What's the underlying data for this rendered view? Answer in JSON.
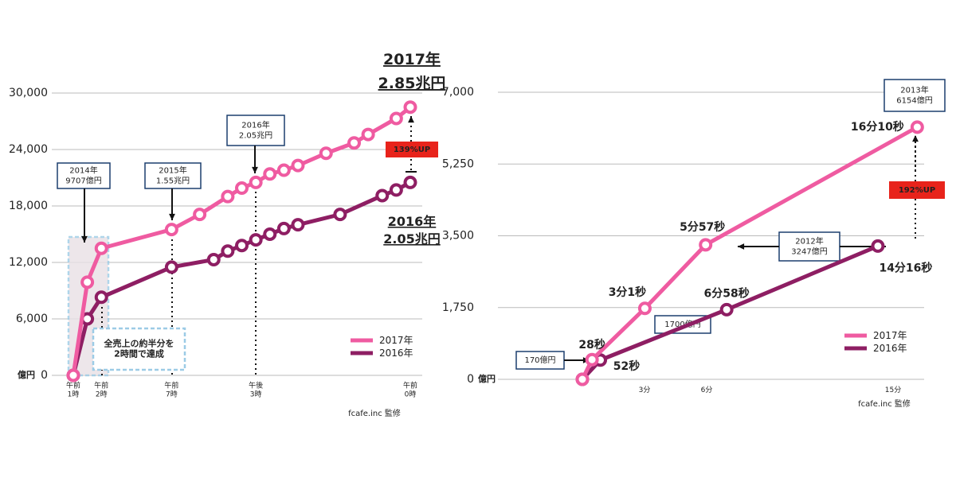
{
  "chart_data": [
    {
      "type": "line",
      "y_unit": "億円",
      "source": "fcafe.inc 監修",
      "xlim": [
        0,
        24
      ],
      "ylim": [
        0,
        30000
      ],
      "xticks": [
        {
          "value": 0,
          "label": "午前\n1時"
        },
        {
          "value": 2,
          "label": "午前\n2時"
        },
        {
          "value": 7,
          "label": "午前\n7時"
        },
        {
          "value": 13,
          "label": "午後\n3時"
        },
        {
          "value": 24,
          "label": "午前\n0時"
        }
      ],
      "yticks": [
        0,
        {
          "value": 6000,
          "label": "6,000"
        },
        {
          "value": 12000,
          "label": "12,000"
        },
        {
          "value": 18000,
          "label": "18,000"
        },
        {
          "value": 24000,
          "label": "24,000"
        },
        {
          "value": 30000,
          "label": "30,000"
        }
      ],
      "grid": true,
      "legend": "lower right",
      "series": [
        {
          "name": "2017年",
          "color": "#ef5ba1",
          "x": [
            0,
            1,
            2,
            7,
            9,
            11,
            12,
            13,
            14,
            15,
            16,
            18,
            20,
            21,
            23,
            24
          ],
          "values": [
            0,
            9900,
            13500,
            15500,
            17100,
            19000,
            19900,
            20500,
            21400,
            21800,
            22300,
            23600,
            24700,
            25600,
            27300,
            28500
          ]
        },
        {
          "name": "2016年",
          "color": "#8e1e63",
          "x": [
            0,
            1,
            2,
            7,
            10,
            11,
            12,
            13,
            14,
            15,
            16,
            19,
            22,
            23,
            24
          ],
          "values": [
            0,
            6000,
            8300,
            11500,
            12300,
            13200,
            13800,
            14400,
            15000,
            15600,
            16000,
            17100,
            19100,
            19700,
            20500
          ]
        }
      ],
      "annotations": [
        "2014年\n9707億円",
        "2015年\n1.55兆円",
        "2016年\n2.05兆円",
        "全売上の約半分を\n2時間で達成",
        "139%UP",
        "2017年\n2.85兆円",
        "2016年\n2.05兆円"
      ]
    },
    {
      "type": "line",
      "y_unit": "億円",
      "source": "fcafe.inc 監修",
      "xlim": [
        0,
        16.5
      ],
      "ylim": [
        0,
        7000
      ],
      "xticks": [
        {
          "value": 3,
          "label": "3分"
        },
        {
          "value": 6,
          "label": "6分"
        },
        {
          "value": 15,
          "label": "15分"
        }
      ],
      "yticks": [
        0,
        {
          "value": 1750,
          "label": "1,750"
        },
        {
          "value": 3500,
          "label": "3,500"
        },
        {
          "value": 5250,
          "label": "5,250"
        },
        {
          "value": 7000,
          "label": "7,000"
        }
      ],
      "grid": true,
      "legend": "lower right",
      "series": [
        {
          "name": "2017年",
          "color": "#ef5ba1",
          "x": [
            0,
            0.467,
            3.017,
            5.95,
            16.167
          ],
          "values": [
            0,
            480,
            1730,
            3280,
            6150
          ],
          "point_labels": [
            null,
            "28秒",
            "3分1秒",
            "5分57秒",
            "16分10秒"
          ]
        },
        {
          "name": "2016年",
          "color": "#8e1e63",
          "x": [
            0,
            0.867,
            6.967,
            14.267
          ],
          "values": [
            0,
            470,
            1700,
            3250
          ],
          "point_labels": [
            null,
            "52秒",
            "6分58秒",
            "14分16秒"
          ]
        }
      ],
      "annotations": [
        "2013年\n6154億円",
        "2012年\n3247億円",
        "1700億円",
        "170億円",
        "192%UP"
      ]
    }
  ]
}
